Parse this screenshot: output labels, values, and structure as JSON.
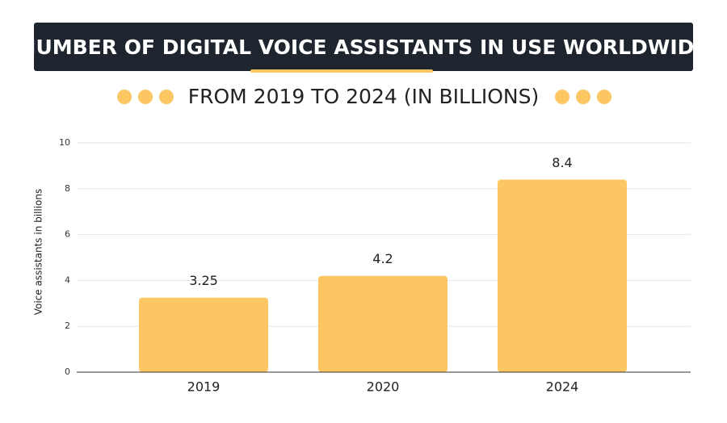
{
  "chart_data": {
    "type": "bar",
    "title": "NUMBER OF DIGITAL VOICE ASSISTANTS IN USE WORLDWIDE",
    "subtitle": "FROM 2019 TO 2024 (IN BILLIONS)",
    "y_label": "Voice assistants in billions",
    "categories": [
      "2019",
      "2020",
      "2024"
    ],
    "values": [
      3.25,
      4.2,
      8.4
    ],
    "color": "#fcc662",
    "ylim": [
      0,
      10
    ],
    "yticks": [
      0,
      2,
      4,
      6,
      8,
      10
    ],
    "grid": true
  }
}
